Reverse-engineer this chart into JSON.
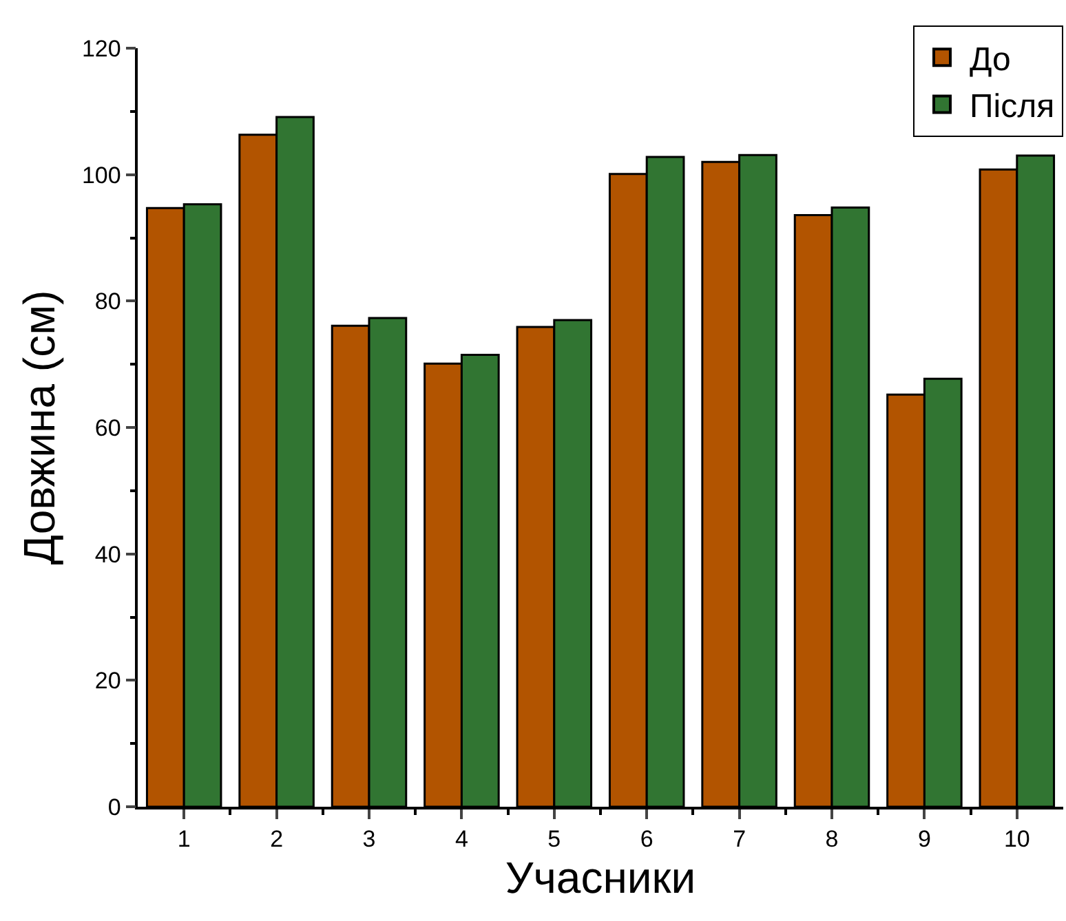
{
  "chart_data": {
    "type": "bar",
    "xlabel": "Учасники",
    "ylabel": "Довжина (см)",
    "categories": [
      "1",
      "2",
      "3",
      "4",
      "5",
      "6",
      "7",
      "8",
      "9",
      "10"
    ],
    "series": [
      {
        "name": "До",
        "color": "#b25400",
        "values": [
          94.7,
          106.3,
          76.1,
          70.1,
          75.9,
          100.1,
          102.0,
          93.6,
          65.2,
          100.8
        ]
      },
      {
        "name": "Після",
        "color": "#317532",
        "values": [
          95.3,
          109.1,
          77.3,
          71.5,
          77.0,
          102.8,
          103.1,
          94.8,
          67.7,
          103.0
        ]
      }
    ],
    "ylim": [
      0,
      120
    ],
    "yticks": [
      0,
      20,
      40,
      60,
      80,
      100,
      120
    ],
    "legend": "top right"
  }
}
